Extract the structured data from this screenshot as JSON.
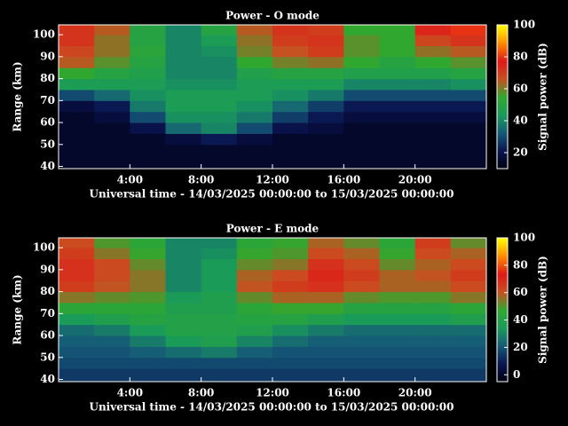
{
  "chart_data": [
    {
      "type": "heatmap",
      "title": "Power - O mode",
      "xlabel": "Universal time - 14/03/2025 00:00:00 to 15/03/2025 00:00:00",
      "ylabel": "Range (km)",
      "colorbar_label": "Signal power (dB)",
      "colormap": [
        "#000010",
        "#0a1450",
        "#155a78",
        "#1a9a5a",
        "#30a830",
        "#c85020",
        "#e01818",
        "#ff8c00",
        "#ffff00"
      ],
      "xlim": [
        0,
        24
      ],
      "ylim": [
        39,
        104.5
      ],
      "clim": [
        10,
        100
      ],
      "xticks": [
        {
          "value": 4,
          "label": "4:00"
        },
        {
          "value": 8,
          "label": "8:00"
        },
        {
          "value": 12,
          "label": "12:00"
        },
        {
          "value": 16,
          "label": "16:00"
        },
        {
          "value": 20,
          "label": "20:00"
        }
      ],
      "yticks": [
        40,
        50,
        60,
        70,
        80,
        90,
        100
      ],
      "cticks": [
        20,
        40,
        60,
        80,
        100
      ],
      "x_bins": [
        0,
        2,
        4,
        6,
        8,
        10,
        12,
        14,
        16,
        18,
        20,
        22,
        24
      ],
      "y_bins": [
        39,
        45,
        50,
        55,
        60,
        65,
        70,
        75,
        80,
        85,
        90,
        95,
        100,
        104.5
      ],
      "z": [
        [
          15,
          15,
          15,
          15,
          15,
          15,
          15,
          15,
          15,
          15,
          15,
          15
        ],
        [
          15,
          15,
          15,
          15,
          15,
          15,
          15,
          15,
          15,
          15,
          15,
          15
        ],
        [
          15,
          15,
          15,
          18,
          22,
          18,
          15,
          15,
          15,
          15,
          15,
          15
        ],
        [
          15,
          15,
          20,
          35,
          40,
          30,
          20,
          18,
          15,
          15,
          15,
          15
        ],
        [
          15,
          18,
          30,
          42,
          42,
          38,
          28,
          22,
          18,
          18,
          18,
          18
        ],
        [
          18,
          22,
          38,
          45,
          45,
          42,
          35,
          28,
          22,
          22,
          22,
          22
        ],
        [
          30,
          35,
          42,
          45,
          45,
          45,
          42,
          38,
          30,
          30,
          30,
          30
        ],
        [
          45,
          45,
          45,
          42,
          42,
          45,
          45,
          45,
          40,
          40,
          40,
          42
        ],
        [
          55,
          50,
          48,
          40,
          40,
          48,
          50,
          50,
          48,
          48,
          48,
          50
        ],
        [
          65,
          58,
          50,
          40,
          40,
          55,
          60,
          62,
          55,
          50,
          55,
          58
        ],
        [
          68,
          62,
          52,
          40,
          42,
          60,
          66,
          70,
          58,
          55,
          62,
          65
        ],
        [
          72,
          62,
          50,
          40,
          45,
          62,
          70,
          72,
          58,
          55,
          68,
          72
        ],
        [
          72,
          65,
          50,
          40,
          50,
          65,
          72,
          70,
          55,
          55,
          75,
          80
        ]
      ]
    },
    {
      "type": "heatmap",
      "title": "Power - E mode",
      "xlabel": "Universal time - 14/03/2025 00:00:00 to 15/03/2025 00:00:00",
      "ylabel": "Range (km)",
      "colorbar_label": "Signal power (dB)",
      "colormap": [
        "#000010",
        "#0a1450",
        "#155a78",
        "#1a9a5a",
        "#30a830",
        "#c85020",
        "#e01818",
        "#ff8c00",
        "#ffff00"
      ],
      "xlim": [
        0,
        24
      ],
      "ylim": [
        39,
        104.5
      ],
      "clim": [
        -5,
        100
      ],
      "xticks": [
        {
          "value": 4,
          "label": "4:00"
        },
        {
          "value": 8,
          "label": "8:00"
        },
        {
          "value": 12,
          "label": "12:00"
        },
        {
          "value": 16,
          "label": "16:00"
        },
        {
          "value": 20,
          "label": "20:00"
        }
      ],
      "yticks": [
        40,
        50,
        60,
        70,
        80,
        90,
        100
      ],
      "cticks": [
        0,
        20,
        40,
        60,
        80,
        100
      ],
      "x_bins": [
        0,
        2,
        4,
        6,
        8,
        10,
        12,
        14,
        16,
        18,
        20,
        22,
        24
      ],
      "y_bins": [
        39,
        45,
        50,
        55,
        60,
        65,
        70,
        75,
        80,
        85,
        90,
        95,
        100,
        104.5
      ],
      "z": [
        [
          15,
          15,
          15,
          15,
          15,
          15,
          15,
          15,
          15,
          15,
          15,
          15
        ],
        [
          18,
          18,
          18,
          18,
          18,
          18,
          18,
          18,
          18,
          18,
          18,
          18
        ],
        [
          20,
          20,
          22,
          25,
          28,
          22,
          20,
          20,
          20,
          20,
          20,
          20
        ],
        [
          22,
          22,
          28,
          35,
          38,
          30,
          25,
          22,
          22,
          22,
          22,
          22
        ],
        [
          25,
          28,
          35,
          40,
          40,
          38,
          32,
          28,
          25,
          25,
          25,
          25
        ],
        [
          35,
          38,
          42,
          40,
          40,
          42,
          42,
          38,
          35,
          35,
          35,
          38
        ],
        [
          45,
          45,
          45,
          38,
          38,
          45,
          48,
          48,
          42,
          42,
          42,
          45
        ],
        [
          55,
          52,
          50,
          35,
          38,
          52,
          58,
          58,
          52,
          50,
          50,
          55
        ],
        [
          65,
          60,
          55,
          30,
          35,
          60,
          65,
          68,
          62,
          58,
          58,
          62
        ],
        [
          68,
          62,
          55,
          30,
          35,
          58,
          62,
          70,
          65,
          58,
          60,
          65
        ],
        [
          68,
          62,
          52,
          30,
          35,
          52,
          55,
          68,
          62,
          52,
          58,
          62
        ],
        [
          65,
          55,
          48,
          30,
          32,
          48,
          50,
          62,
          58,
          48,
          62,
          58
        ],
        [
          62,
          50,
          45,
          30,
          30,
          45,
          48,
          58,
          52,
          45,
          65,
          52
        ]
      ]
    }
  ]
}
